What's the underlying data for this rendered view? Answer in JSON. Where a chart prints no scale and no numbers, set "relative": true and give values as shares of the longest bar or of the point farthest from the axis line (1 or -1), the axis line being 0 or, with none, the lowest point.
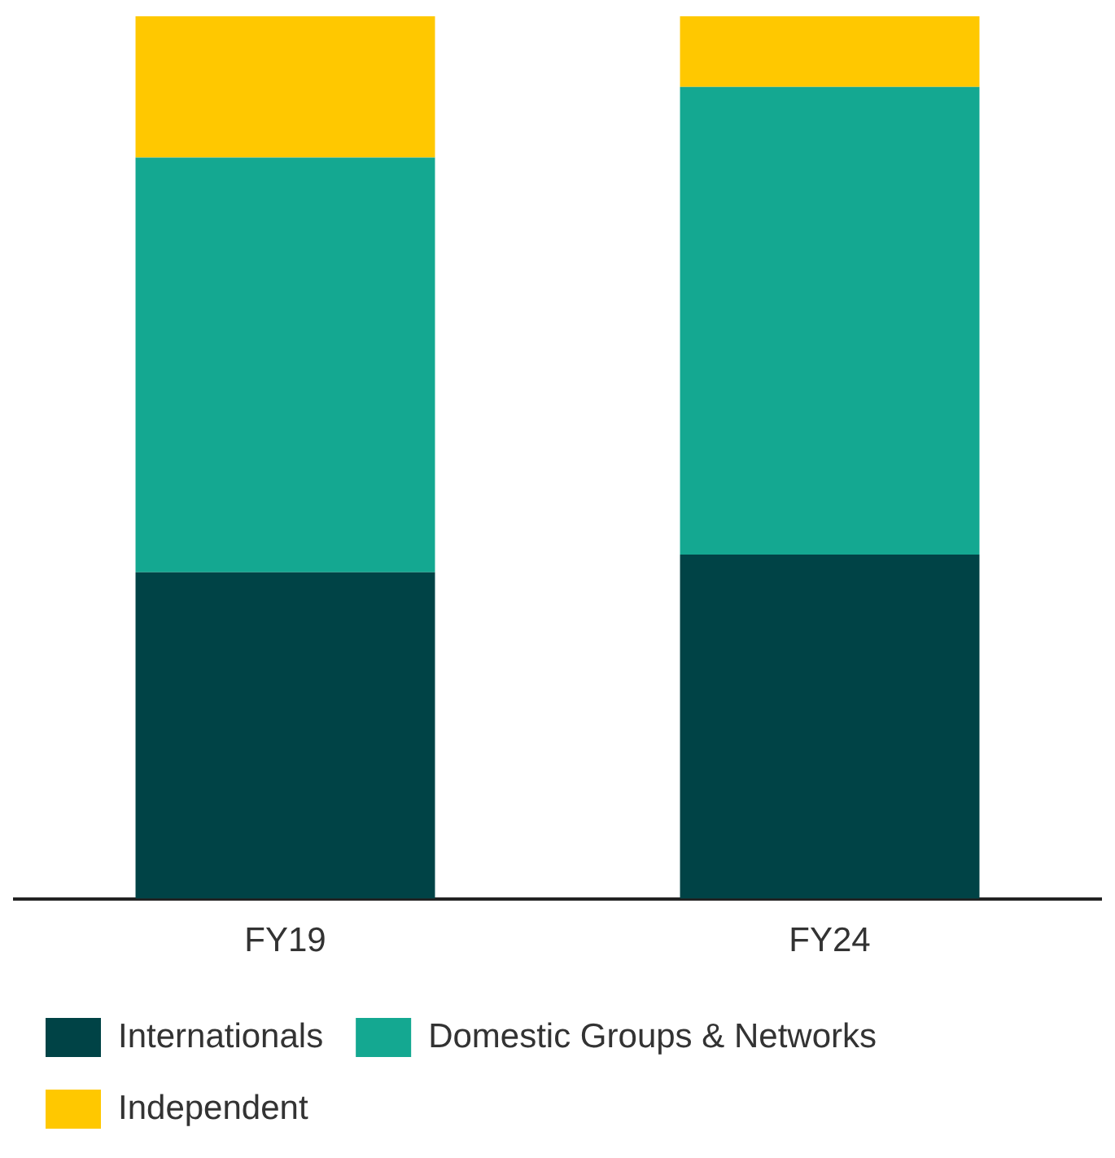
{
  "chart_data": {
    "type": "bar",
    "stacked": true,
    "relative": true,
    "categories": [
      "FY19",
      "FY24"
    ],
    "series": [
      {
        "name": "Internationals",
        "color": "#004346",
        "values": [
          0.37,
          0.39
        ]
      },
      {
        "name": "Domestic Groups & Networks",
        "color": "#14a891",
        "values": [
          0.47,
          0.53
        ]
      },
      {
        "name": "Independent",
        "color": "#ffc800",
        "values": [
          0.16,
          0.08
        ]
      }
    ],
    "grid": false,
    "legend": "bottom"
  }
}
